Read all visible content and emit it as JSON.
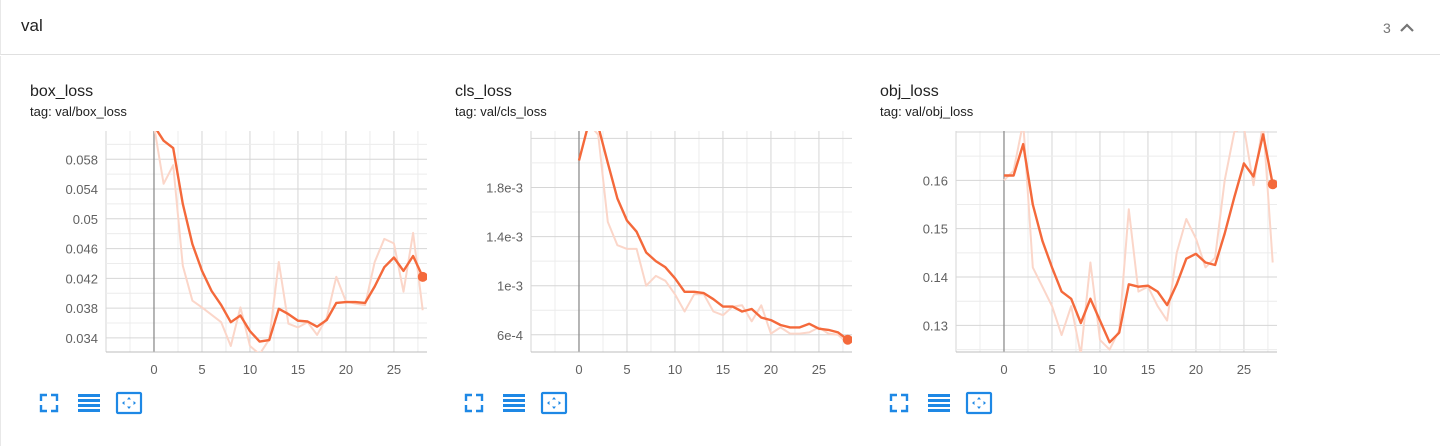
{
  "group": {
    "title": "val",
    "count": "3",
    "collapse_icon": "chevron-up-icon"
  },
  "accent_color": "#f4693b",
  "raw_color": "#fbd6c9",
  "cards": [
    {
      "title": "box_loss",
      "tag": "tag: val/box_loss"
    },
    {
      "title": "cls_loss",
      "tag": "tag: val/cls_loss"
    },
    {
      "title": "obj_loss",
      "tag": "tag: val/obj_loss"
    }
  ],
  "card_buttons": [
    "fullscreen-icon",
    "toggle-log-scale-icon",
    "fit-domain-icon"
  ],
  "chart_data": [
    {
      "type": "line",
      "title": "box_loss",
      "xlim": [
        -5,
        29.8
      ],
      "ylim": [
        0.0321,
        0.0618
      ],
      "xticks": [
        0,
        5,
        10,
        15,
        20,
        25
      ],
      "yticks": [
        0.034,
        0.038,
        0.042,
        0.046,
        0.05,
        0.054,
        0.058
      ],
      "ytick_labels": [
        "0.034",
        "0.038",
        "0.042",
        "0.046",
        "0.05",
        "0.054",
        "0.058"
      ],
      "series": [
        {
          "x": [
            0,
            1,
            2,
            3,
            4,
            5,
            6,
            7,
            8,
            9,
            10,
            11,
            12,
            13,
            14,
            15,
            16,
            17,
            18,
            19,
            20,
            21,
            22,
            23,
            24,
            25,
            26,
            27,
            28
          ],
          "y": [
            0.0625,
            0.0547,
            0.0572,
            0.0437,
            0.039,
            0.0381,
            0.0371,
            0.0361,
            0.0329,
            0.0381,
            0.0329,
            0.0318,
            0.0338,
            0.0442,
            0.0359,
            0.0354,
            0.0361,
            0.0344,
            0.0367,
            0.0422,
            0.0389,
            0.0386,
            0.0384,
            0.0442,
            0.0473,
            0.0467,
            0.0402,
            0.0481,
            0.0377
          ]
        },
        {
          "x": [
            0,
            1,
            2,
            3,
            4,
            5,
            6,
            7,
            8,
            9,
            10,
            11,
            12,
            13,
            14,
            15,
            16,
            17,
            18,
            19,
            20,
            21,
            22,
            23,
            24,
            25,
            26,
            27,
            28
          ],
          "y": [
            0.0625,
            0.0605,
            0.0595,
            0.052,
            0.0466,
            0.043,
            0.0403,
            0.0384,
            0.0361,
            0.037,
            0.0349,
            0.0335,
            0.0337,
            0.0379,
            0.0372,
            0.0363,
            0.0362,
            0.0355,
            0.0364,
            0.0387,
            0.0388,
            0.0388,
            0.0387,
            0.0409,
            0.0435,
            0.0448,
            0.043,
            0.045,
            0.0422
          ]
        }
      ]
    },
    {
      "type": "line",
      "title": "cls_loss",
      "xlim": [
        -5,
        29.8
      ],
      "ylim": [
        0.00046,
        0.00226
      ],
      "xticks": [
        0,
        5,
        10,
        15,
        20,
        25
      ],
      "yticks": [
        0.0006,
        0.001,
        0.0014,
        0.0018
      ],
      "ytick_labels": [
        "6e-4",
        "1e-3",
        "1.4e-3",
        "1.8e-3"
      ],
      "series": [
        {
          "x": [
            0,
            1,
            2,
            3,
            4,
            5,
            6,
            7,
            8,
            9,
            10,
            11,
            12,
            13,
            14,
            15,
            16,
            17,
            18,
            19,
            20,
            21,
            22,
            23,
            24,
            25,
            26,
            27,
            28
          ],
          "y": [
            0.00232,
            0.00232,
            0.00223,
            0.00152,
            0.00133,
            0.0013,
            0.0013,
            0.001,
            0.00108,
            0.00104,
            0.00093,
            0.00079,
            0.00093,
            0.00093,
            0.00079,
            0.00076,
            0.00083,
            0.00084,
            0.00071,
            0.00084,
            0.00061,
            0.00066,
            0.00061,
            0.00061,
            0.00062,
            0.00066,
            0.00061,
            0.0006,
            0.00053
          ]
        },
        {
          "x": [
            0,
            1,
            2,
            3,
            4,
            5,
            6,
            7,
            8,
            9,
            10,
            11,
            12,
            13,
            14,
            15,
            16,
            17,
            18,
            19,
            20,
            21,
            22,
            23,
            24,
            25,
            26,
            27,
            28
          ],
          "y": [
            0.00202,
            0.00232,
            0.0023,
            0.002,
            0.00171,
            0.00153,
            0.00144,
            0.00127,
            0.0012,
            0.00115,
            0.00106,
            0.00095,
            0.00095,
            0.00094,
            0.00089,
            0.00083,
            0.00083,
            0.00079,
            0.00081,
            0.00074,
            0.00072,
            0.00068,
            0.00066,
            0.00066,
            0.00069,
            0.00065,
            0.00064,
            0.00062,
            0.00056
          ]
        }
      ]
    },
    {
      "type": "line",
      "title": "obj_loss",
      "xlim": [
        -5,
        29.8
      ],
      "ylim": [
        0.1245,
        0.1702
      ],
      "xticks": [
        0,
        5,
        10,
        15,
        20,
        25
      ],
      "yticks": [
        0.13,
        0.14,
        0.15,
        0.16
      ],
      "ytick_labels": [
        "0.13",
        "0.14",
        "0.15",
        "0.16"
      ],
      "series": [
        {
          "x": [
            0,
            1,
            2,
            3,
            4,
            5,
            6,
            7,
            8,
            9,
            10,
            11,
            12,
            13,
            14,
            15,
            16,
            17,
            18,
            19,
            20,
            21,
            22,
            23,
            24,
            25,
            26,
            27,
            28
          ],
          "y": [
            0.16,
            0.162,
            0.172,
            0.142,
            0.138,
            0.134,
            0.128,
            0.134,
            0.124,
            0.143,
            0.127,
            0.125,
            0.129,
            0.154,
            0.137,
            0.138,
            0.134,
            0.131,
            0.145,
            0.152,
            0.148,
            0.142,
            0.144,
            0.16,
            0.17,
            0.171,
            0.159,
            0.172,
            0.143
          ]
        },
        {
          "x": [
            0,
            1,
            2,
            3,
            4,
            5,
            6,
            7,
            8,
            9,
            10,
            11,
            12,
            13,
            14,
            15,
            16,
            17,
            18,
            19,
            20,
            21,
            22,
            23,
            24,
            25,
            26,
            27,
            28
          ],
          "y": [
            0.161,
            0.161,
            0.1675,
            0.155,
            0.1475,
            0.142,
            0.137,
            0.1355,
            0.1305,
            0.1355,
            0.131,
            0.1265,
            0.1285,
            0.1385,
            0.138,
            0.1382,
            0.137,
            0.1342,
            0.1385,
            0.1438,
            0.1448,
            0.143,
            0.1425,
            0.149,
            0.1565,
            0.1635,
            0.1608,
            0.1695,
            0.1592
          ]
        }
      ]
    }
  ]
}
